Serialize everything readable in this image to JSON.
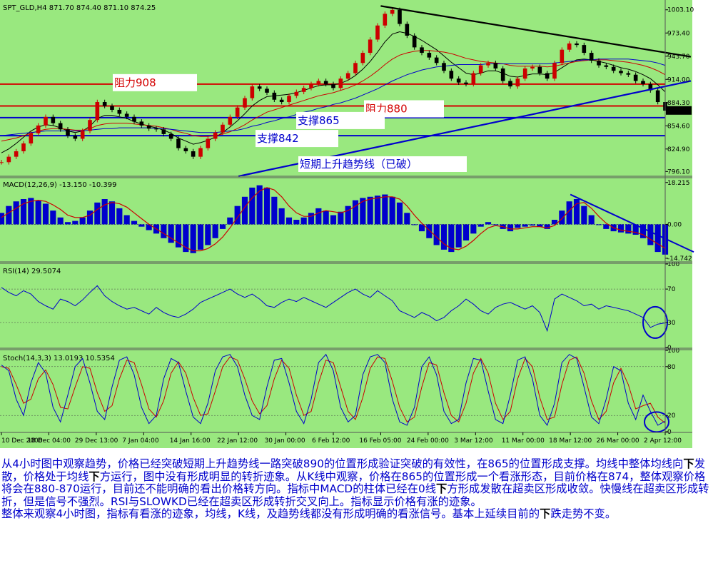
{
  "colors": {
    "background": "#99e87f",
    "price_ma_fast": "#000000",
    "price_ma_mid": "#cc0000",
    "price_ma_slow": "#0000cc",
    "resistance": "#d40000",
    "support": "#0000cc",
    "trend_black": "#000000",
    "macd_hist": "#0000cc",
    "macd_signal": "#cc0000",
    "rsi": "#0000cc",
    "stoch_main": "#0000cc",
    "stoch_signal": "#cc0000",
    "commentary": "#0000cc"
  },
  "chart_data": [
    {
      "type": "line",
      "panel": "price",
      "title": "SPT_GLD,H4  871.70 874.40 871.10 874.25",
      "current_price": "874.25",
      "ylim": [
        790,
        1012
      ],
      "y_ticks": [
        "1003.10",
        "973.40",
        "943.70",
        "914.00",
        "884.30",
        "854.60",
        "824.90",
        "796.10"
      ],
      "y_tick_values": [
        1003.1,
        973.4,
        943.7,
        914.0,
        884.3,
        854.6,
        824.9,
        796.1
      ],
      "x_ticks": [
        "10 Dec 2008",
        "18 Dec 04:00",
        "29 Dec 13:00",
        "7 Jan 04:00",
        "14 Jan 16:00",
        "22 Jan 12:00",
        "30 Jan 00:00",
        "6 Feb 12:00",
        "16 Feb 05:00",
        "24 Feb 00:00",
        "3 Mar 12:00",
        "11 Mar 00:00",
        "18 Mar 12:00",
        "26 Mar 00:00",
        "2 Apr 12:00"
      ],
      "series": [
        {
          "values": [
            808,
            815,
            822,
            832,
            845,
            855,
            866,
            858,
            850,
            842,
            838,
            848,
            862,
            885,
            880,
            875,
            870,
            866,
            860,
            855,
            851,
            850,
            844,
            838,
            826,
            822,
            815,
            826,
            838,
            846,
            856,
            866,
            878,
            890,
            905,
            902,
            897,
            888,
            885,
            893,
            898,
            903,
            908,
            912,
            908,
            903,
            915,
            922,
            935,
            948,
            965,
            983,
            998,
            1003,
            985,
            970,
            955,
            948,
            942,
            935,
            925,
            915,
            910,
            908,
            922,
            932,
            935,
            928,
            912,
            905,
            915,
            928,
            930,
            922,
            915,
            935,
            952,
            960,
            958,
            948,
            938,
            932,
            930,
            925,
            922,
            920,
            912,
            908,
            900,
            885,
            874
          ]
        }
      ],
      "moving_averages": [
        {
          "values": [
            820,
            825,
            832,
            840,
            848,
            853,
            856,
            855,
            852,
            848,
            846,
            848,
            854,
            864,
            868,
            868,
            866,
            864,
            860,
            857,
            854,
            852,
            849,
            845,
            839,
            835,
            831,
            833,
            836,
            840,
            846,
            853,
            861,
            870,
            880,
            887,
            892,
            893,
            894,
            895,
            897,
            900,
            903,
            906,
            907,
            907,
            909,
            913,
            919,
            927,
            937,
            949,
            962,
            972,
            975,
            973,
            969,
            964,
            958,
            952,
            944,
            936,
            929,
            922,
            920,
            922,
            925,
            925,
            922,
            918,
            917,
            919,
            921,
            921,
            920,
            923,
            929,
            935,
            939,
            940,
            939,
            937,
            935,
            932,
            929,
            927,
            924,
            920,
            915,
            907,
            898
          ]
        },
        {
          "values": [
            835,
            837,
            839,
            842,
            845,
            848,
            850,
            851,
            851,
            850,
            849,
            849,
            851,
            855,
            857,
            858,
            858,
            858,
            857,
            856,
            855,
            854,
            852,
            850,
            847,
            845,
            842,
            841,
            841,
            842,
            844,
            847,
            851,
            856,
            862,
            867,
            872,
            875,
            878,
            881,
            884,
            887,
            890,
            893,
            895,
            897,
            900,
            903,
            907,
            912,
            918,
            925,
            933,
            940,
            945,
            948,
            950,
            951,
            951,
            950,
            949,
            947,
            944,
            941,
            939,
            937,
            936,
            935,
            934,
            932,
            931,
            931,
            931,
            931,
            930,
            931,
            933,
            935,
            937,
            938,
            939,
            939,
            939,
            938,
            937,
            936,
            934,
            932,
            929,
            925,
            920
          ]
        },
        {
          "values": [
            842,
            843,
            844,
            845,
            846,
            847,
            848,
            848,
            848,
            848,
            848,
            848,
            849,
            850,
            851,
            851,
            852,
            852,
            852,
            852,
            852,
            851,
            851,
            850,
            849,
            848,
            847,
            846,
            846,
            846,
            847,
            848,
            849,
            851,
            854,
            856,
            859,
            861,
            864,
            866,
            869,
            872,
            874,
            877,
            879,
            882,
            884,
            887,
            890,
            894,
            898,
            902,
            907,
            912,
            916,
            920,
            923,
            926,
            928,
            930,
            931,
            932,
            933,
            933,
            933,
            933,
            934,
            934,
            934,
            934,
            934,
            934,
            934,
            934,
            934,
            935,
            936,
            937,
            938,
            939,
            939,
            940,
            940,
            940,
            940,
            940,
            939,
            938,
            937,
            935,
            932
          ]
        }
      ],
      "horizontal_levels": [
        {
          "label": "阻力908",
          "value": 908,
          "color": "#d40000"
        },
        {
          "label": "阻力880",
          "value": 880,
          "color": "#d40000"
        },
        {
          "label": "支撑865",
          "value": 865,
          "color": "#0000cc"
        },
        {
          "label": "支撑842",
          "value": 842,
          "color": "#0000cc"
        }
      ],
      "trendlines": [
        {
          "label": "短期上升趋势线（已破）",
          "from": {
            "x": "22 Jan 12:00",
            "y": 790
          },
          "to": {
            "x": "2 Apr 12:00",
            "y": 912
          },
          "color": "#0000cc"
        },
        {
          "label": "",
          "from": {
            "x": "16 Feb 05:00",
            "y": 1008
          },
          "to": {
            "x": "2 Apr 12:00",
            "y": 943
          },
          "color": "#000000"
        }
      ]
    },
    {
      "type": "bar",
      "panel": "macd",
      "title": "MACD(12,26,9) -13.150 -10.399",
      "ylim": [
        -16,
        20
      ],
      "y_ticks": [
        "18.215",
        "0.00",
        "-14.742"
      ],
      "y_tick_values": [
        18.215,
        0.0,
        -14.742
      ],
      "series": [
        {
          "name": "MACD",
          "values": [
            5,
            8,
            10,
            11,
            11.5,
            10.5,
            9,
            6,
            3,
            1,
            1.5,
            3,
            6,
            9.5,
            11,
            10,
            7,
            4,
            1.5,
            -1,
            -2.5,
            -4,
            -6,
            -8,
            -10,
            -12,
            -12.5,
            -11,
            -9,
            -6,
            -2,
            3,
            8,
            12,
            16,
            17,
            16,
            12,
            7,
            3,
            2,
            3,
            5,
            7,
            6,
            4,
            5.5,
            8,
            10.5,
            11.5,
            12,
            12.5,
            13,
            12,
            9.5,
            5,
            0,
            -3,
            -6,
            -9,
            -11,
            -12,
            -10,
            -7,
            -4,
            -1,
            1,
            0,
            -2,
            -3,
            -1.5,
            -1,
            -0.5,
            -1,
            -2,
            2,
            6,
            10,
            11,
            8,
            4,
            0,
            -2,
            -3,
            -3.5,
            -4,
            -4.5,
            -6,
            -9,
            -12,
            -13.15
          ]
        },
        {
          "name": "Signal",
          "values": [
            3,
            5,
            7,
            9,
            10,
            10.5,
            10,
            8.5,
            6.5,
            4,
            3,
            3,
            4,
            6.5,
            8.5,
            9.5,
            9,
            7.5,
            5,
            2.5,
            0,
            -2,
            -4,
            -6,
            -8,
            -10,
            -11.5,
            -11.5,
            -10.5,
            -8.5,
            -5.5,
            -1.5,
            3,
            7.5,
            11.5,
            14.5,
            16,
            15,
            12,
            8,
            5,
            3.5,
            3.5,
            5,
            6,
            5.5,
            5,
            6,
            8,
            10,
            11,
            11.5,
            12,
            12,
            11,
            8,
            4,
            0.5,
            -2.5,
            -5.5,
            -8.5,
            -10.5,
            -11,
            -9.5,
            -7,
            -4,
            -1.5,
            -0.5,
            -1,
            -2,
            -2,
            -1.5,
            -1,
            -1,
            -1.5,
            -0.5,
            2.5,
            6,
            9,
            9.5,
            7,
            3.5,
            0.5,
            -1.5,
            -2.5,
            -3,
            -3.5,
            -4.5,
            -6.5,
            -8.5,
            -10.399
          ]
        }
      ],
      "trendline": {
        "from": {
          "x": "18 Mar 12:00",
          "y": 13
        },
        "to": {
          "x": "2 Apr 12:00",
          "y": -12
        },
        "color": "#0000cc"
      }
    },
    {
      "type": "line",
      "panel": "rsi",
      "title": "RSI(14) 29.5074",
      "ylim": [
        0,
        100
      ],
      "y_ticks": [
        "100",
        "70",
        "30",
        "0"
      ],
      "y_tick_values": [
        100,
        70,
        30,
        0
      ],
      "series": [
        {
          "name": "RSI(14)",
          "values": [
            72,
            66,
            62,
            68,
            64,
            55,
            50,
            46,
            58,
            55,
            50,
            57,
            66,
            74,
            62,
            55,
            50,
            46,
            48,
            44,
            40,
            48,
            42,
            38,
            36,
            40,
            46,
            54,
            58,
            62,
            66,
            70,
            64,
            60,
            64,
            58,
            50,
            48,
            54,
            58,
            55,
            60,
            56,
            52,
            48,
            54,
            60,
            66,
            70,
            64,
            60,
            68,
            62,
            56,
            44,
            40,
            36,
            42,
            38,
            32,
            36,
            44,
            50,
            58,
            52,
            44,
            40,
            48,
            52,
            54,
            50,
            46,
            50,
            42,
            20,
            58,
            64,
            60,
            56,
            50,
            52,
            46,
            50,
            48,
            46,
            44,
            40,
            36,
            24,
            28,
            29.5074
          ]
        }
      ],
      "annotation": {
        "type": "circle",
        "x": "2 Apr 12:00",
        "y": 30,
        "color": "#0000cc"
      }
    },
    {
      "type": "line",
      "panel": "stochastic",
      "title": "Stoch(14,3,3) 13.0193 10.5354",
      "ylim": [
        0,
        100
      ],
      "y_ticks": [
        "100",
        "80",
        "20",
        "0"
      ],
      "y_tick_values": [
        100,
        80,
        20,
        0
      ],
      "series": [
        {
          "name": "Main",
          "values": [
            82,
            75,
            40,
            20,
            60,
            85,
            72,
            30,
            12,
            45,
            80,
            90,
            60,
            25,
            15,
            55,
            88,
            92,
            70,
            30,
            10,
            20,
            65,
            90,
            85,
            50,
            18,
            10,
            35,
            75,
            92,
            95,
            80,
            45,
            20,
            15,
            55,
            88,
            90,
            60,
            25,
            10,
            40,
            85,
            95,
            75,
            30,
            12,
            20,
            70,
            92,
            95,
            85,
            40,
            12,
            8,
            30,
            80,
            92,
            70,
            25,
            10,
            15,
            60,
            90,
            88,
            50,
            15,
            10,
            45,
            88,
            92,
            65,
            20,
            8,
            35,
            85,
            95,
            90,
            55,
            18,
            10,
            40,
            80,
            75,
            35,
            15,
            45,
            25,
            8,
            13.0193
          ]
        },
        {
          "name": "Signal",
          "values": [
            80,
            78,
            58,
            35,
            40,
            65,
            76,
            58,
            30,
            28,
            55,
            80,
            78,
            48,
            25,
            32,
            65,
            88,
            85,
            58,
            28,
            18,
            38,
            72,
            86,
            72,
            42,
            20,
            22,
            50,
            80,
            92,
            88,
            65,
            38,
            22,
            32,
            65,
            88,
            78,
            45,
            20,
            25,
            60,
            88,
            85,
            55,
            25,
            15,
            42,
            78,
            92,
            90,
            62,
            30,
            12,
            18,
            55,
            85,
            82,
            48,
            20,
            12,
            35,
            72,
            90,
            72,
            35,
            15,
            25,
            65,
            90,
            80,
            42,
            15,
            18,
            58,
            88,
            92,
            72,
            38,
            15,
            25,
            60,
            78,
            58,
            28,
            32,
            35,
            18,
            10.5354
          ]
        }
      ],
      "annotation": {
        "type": "circle",
        "x": "2 Apr 12:00",
        "y": 12,
        "color": "#0000cc"
      }
    }
  ],
  "commentary": {
    "p1": [
      {
        "text": "从4小时图中观察趋势，价格已经突破短期上升趋势线一路突破890的位置形成验证突破的有效性，在865的位置形成支撑。均线中整体均线向",
        "bold": false
      },
      {
        "text": "下",
        "bold": true
      },
      {
        "text": "发散，价格处于均线",
        "bold": false
      },
      {
        "text": "下",
        "bold": true
      },
      {
        "text": "方运行，图中没有形成明显的转折迹象。从K线中观察，价格在865的位置形成一个看涨形态，目前价格在874，整体观察价格将会在880-870运行，目前还不能明确的看出价格转方向。指标中MACD的柱体已经在0线",
        "bold": false
      },
      {
        "text": "下",
        "bold": true
      },
      {
        "text": "方形成发散在超卖区形成收敛。快慢线在超卖区形成转折，但是信号不强烈。RSI与SLOWKD已经在超卖区形成转折交叉向上。指标显示价格有涨的迹象。",
        "bold": false
      }
    ],
    "p2": [
      {
        "text": "整体来观察4小时图，指标有看涨的迹象，均线，K线，及趋势线都没有形成明确的看涨信号。基本上延续目前的",
        "bold": false
      },
      {
        "text": "下",
        "bold": true
      },
      {
        "text": "跌走势不变。",
        "bold": false
      }
    ]
  }
}
